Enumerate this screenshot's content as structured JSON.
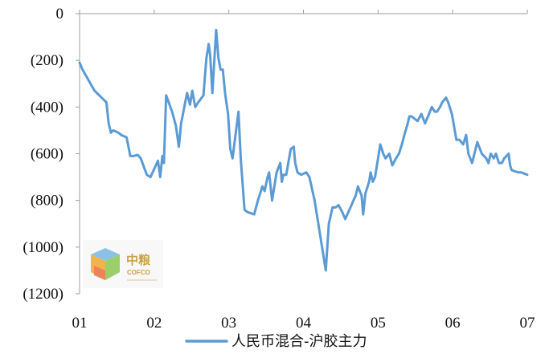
{
  "logo": {
    "cn": "中粮",
    "en": "COFCO"
  },
  "chart_data": {
    "type": "line",
    "title": "",
    "xlabel": "",
    "ylabel": "",
    "ylim": [
      -1200,
      0
    ],
    "xlim": [
      1,
      7
    ],
    "y_ticks": [
      0,
      -200,
      -400,
      -600,
      -800,
      -1000,
      -1200
    ],
    "y_tick_labels": [
      "0",
      "(200)",
      "(400)",
      "(600)",
      "(800)",
      "(1000)",
      "(1200)"
    ],
    "x_ticks": [
      1,
      2,
      3,
      4,
      5,
      6,
      7
    ],
    "x_tick_labels": [
      "01",
      "02",
      "03",
      "04",
      "05",
      "06",
      "07"
    ],
    "grid": false,
    "legend_position": "bottom",
    "colors": {
      "series": "#5b9bd5",
      "axis": "#9e9e9e"
    },
    "series": [
      {
        "name": "人民币混合-沪胶主力",
        "x": [
          1.0,
          1.04,
          1.2,
          1.36,
          1.39,
          1.42,
          1.45,
          1.52,
          1.56,
          1.63,
          1.68,
          1.72,
          1.78,
          1.82,
          1.9,
          1.95,
          2.05,
          2.08,
          2.11,
          2.13,
          2.16,
          2.24,
          2.29,
          2.33,
          2.36,
          2.44,
          2.48,
          2.51,
          2.55,
          2.59,
          2.66,
          2.7,
          2.73,
          2.75,
          2.78,
          2.83,
          2.86,
          2.89,
          2.92,
          2.95,
          2.99,
          3.02,
          3.05,
          3.09,
          3.13,
          3.16,
          3.21,
          3.25,
          3.34,
          3.39,
          3.45,
          3.48,
          3.52,
          3.54,
          3.58,
          3.64,
          3.69,
          3.71,
          3.73,
          3.77,
          3.83,
          3.87,
          3.89,
          3.92,
          3.97,
          4.04,
          4.08,
          4.15,
          4.3,
          4.34,
          4.39,
          4.43,
          4.47,
          4.52,
          4.56,
          4.63,
          4.67,
          4.7,
          4.73,
          4.78,
          4.8,
          4.83,
          4.88,
          4.9,
          4.93,
          4.96,
          4.99,
          5.03,
          5.07,
          5.1,
          5.15,
          5.19,
          5.24,
          5.28,
          5.32,
          5.36,
          5.39,
          5.42,
          5.45,
          5.53,
          5.58,
          5.63,
          5.67,
          5.72,
          5.76,
          5.79,
          5.83,
          5.86,
          5.91,
          5.94,
          5.99,
          6.05,
          6.09,
          6.14,
          6.18,
          6.21,
          6.26,
          6.33,
          6.39,
          6.45,
          6.48,
          6.51,
          6.55,
          6.58,
          6.62,
          6.66,
          6.69,
          6.72,
          6.75,
          6.77,
          6.79,
          6.83,
          6.88,
          6.92,
          7.0
        ],
        "values": [
          -210,
          -240,
          -330,
          -380,
          -470,
          -510,
          -500,
          -510,
          -520,
          -530,
          -610,
          -610,
          -605,
          -620,
          -690,
          -700,
          -630,
          -700,
          -610,
          -640,
          -350,
          -420,
          -480,
          -570,
          -470,
          -340,
          -390,
          -330,
          -400,
          -380,
          -350,
          -190,
          -130,
          -180,
          -340,
          -70,
          -190,
          -240,
          -240,
          -340,
          -430,
          -580,
          -620,
          -520,
          -420,
          -620,
          -840,
          -850,
          -860,
          -800,
          -740,
          -760,
          -700,
          -680,
          -800,
          -680,
          -640,
          -720,
          -690,
          -690,
          -580,
          -570,
          -640,
          -680,
          -690,
          -680,
          -700,
          -800,
          -1100,
          -900,
          -830,
          -830,
          -820,
          -850,
          -880,
          -830,
          -800,
          -780,
          -740,
          -780,
          -860,
          -770,
          -720,
          -680,
          -720,
          -700,
          -640,
          -560,
          -600,
          -620,
          -600,
          -650,
          -620,
          -600,
          -560,
          -510,
          -480,
          -440,
          -440,
          -460,
          -430,
          -470,
          -440,
          -400,
          -420,
          -420,
          -400,
          -380,
          -360,
          -380,
          -430,
          -540,
          -540,
          -560,
          -520,
          -600,
          -640,
          -550,
          -600,
          -620,
          -640,
          -600,
          -620,
          -600,
          -640,
          -640,
          -620,
          -610,
          -600,
          -650,
          -670,
          -675,
          -680,
          -680,
          -690
        ]
      }
    ]
  }
}
